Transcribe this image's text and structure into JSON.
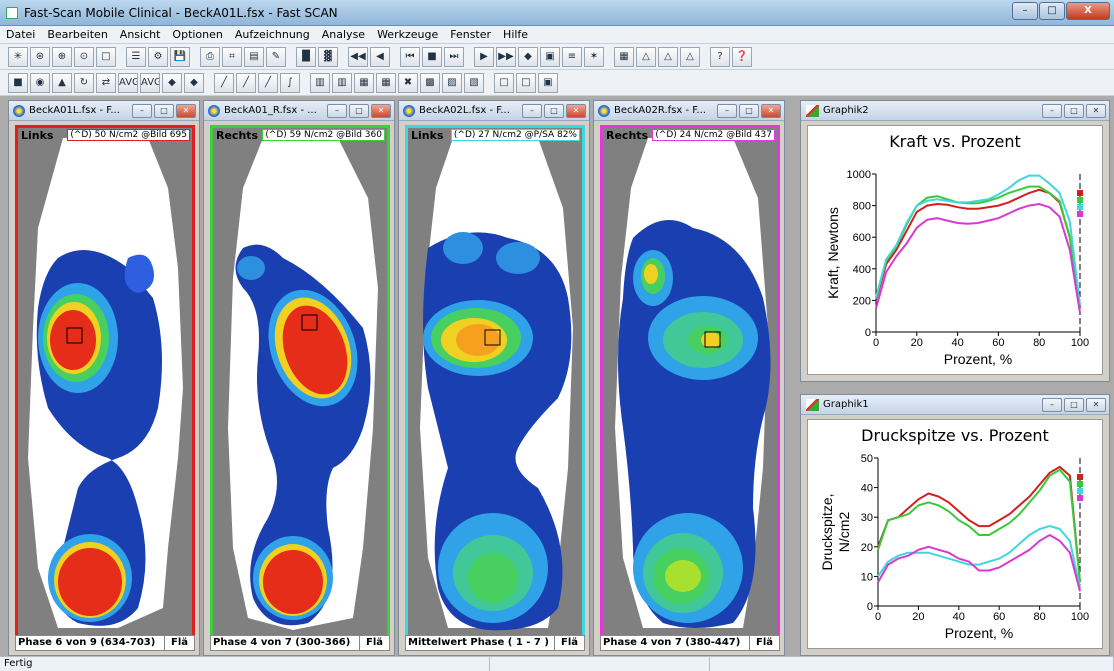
{
  "window": {
    "title": "Fast-Scan Mobile Clinical - BeckA01L.fsx - Fast  SCAN",
    "buttons": {
      "minimize": "–",
      "maximize": "□",
      "close": "X"
    }
  },
  "menu": [
    "Datei",
    "Bearbeiten",
    "Ansicht",
    "Optionen",
    "Aufzeichnung",
    "Analyse",
    "Werkzeuge",
    "Fenster",
    "Hilfe"
  ],
  "toolbar1": [
    "✳",
    "⊛",
    "⊕",
    "⊙",
    "□",
    "|",
    "☰",
    "⚙",
    "💾",
    "|",
    "⎙",
    "⌗",
    "▤",
    "✎",
    "|",
    "█",
    "▓",
    "|",
    "◀◀",
    "◀",
    "|",
    "⏮",
    "■",
    "⏭",
    "|",
    "▶",
    "▶▶",
    "◆",
    "▣",
    "≡",
    "✶",
    "|",
    "▦",
    "△",
    "△",
    "△",
    "|",
    "?",
    "❓"
  ],
  "toolbar2": [
    "■",
    "◉",
    "▲",
    "↻",
    "⇄",
    "AVG",
    "AVG",
    "◆",
    "◆",
    "|",
    "╱",
    "╱",
    "╱",
    "∫",
    "|",
    "▥",
    "▥",
    "▦",
    "▦",
    "✖",
    "▩",
    "▨",
    "▧",
    "|",
    "□",
    "□",
    "▣"
  ],
  "plates": [
    {
      "title": "BeckA01L.fsx - F...",
      "label": "Links",
      "info": "(^D) 50 N/cm2 @Bild 695",
      "phase": "Phase 6 von 9 (634-703)",
      "fla": "Flä",
      "color": "#e02020"
    },
    {
      "title": "BeckA01_R.fsx - ...",
      "label": "Rechts",
      "info": "(^D) 59 N/cm2 @Bild 360",
      "phase": "Phase 4 von 7 (300-366)",
      "fla": "Flä",
      "color": "#39d13a"
    },
    {
      "title": "BeckA02L.fsx - F...",
      "label": "Links",
      "info": "(^D) 27 N/cm2 @P/SA 82%",
      "phase": "Mittelwert Phase ( 1 - 7 )",
      "fla": "Flä",
      "color": "#3fd6dc"
    },
    {
      "title": "BeckA02R.fsx - F...",
      "label": "Rechts",
      "info": "(^D) 24 N/cm2 @Bild 437",
      "phase": "Phase 4 von 7 (380-447)",
      "fla": "Flä",
      "color": "#e03ad9"
    }
  ],
  "graphs": [
    {
      "window_title": "Graphik2",
      "title": "Kraft vs. Prozent",
      "ylabel": "Kraft, Newtons",
      "xlabel": "Prozent, %"
    },
    {
      "window_title": "Graphik1",
      "title": "Druckspitze vs. Prozent",
      "ylabel": "Druckspitze, N/cm2",
      "xlabel": "Prozent, %"
    }
  ],
  "chart_data": [
    {
      "type": "line",
      "title": "Kraft vs. Prozent",
      "xlabel": "Prozent, %",
      "ylabel": "Kraft, Newtons",
      "xlim": [
        0,
        100
      ],
      "ylim": [
        0,
        1000
      ],
      "xticks": [
        0,
        20,
        40,
        60,
        80,
        100
      ],
      "yticks": [
        0,
        200,
        400,
        600,
        800,
        1000
      ],
      "x": [
        0,
        5,
        10,
        15,
        20,
        25,
        30,
        35,
        40,
        45,
        50,
        55,
        60,
        65,
        70,
        75,
        80,
        85,
        90,
        95,
        100
      ],
      "series": [
        {
          "color": "#d02020",
          "values": [
            200,
            430,
            520,
            640,
            760,
            800,
            810,
            805,
            790,
            780,
            780,
            790,
            800,
            820,
            850,
            880,
            900,
            880,
            820,
            600,
            150
          ]
        },
        {
          "color": "#39c93a",
          "values": [
            210,
            450,
            540,
            680,
            800,
            850,
            860,
            840,
            820,
            815,
            815,
            830,
            850,
            880,
            900,
            920,
            920,
            880,
            830,
            600,
            160
          ]
        },
        {
          "color": "#3fd6dc",
          "values": [
            220,
            460,
            550,
            690,
            800,
            830,
            840,
            830,
            820,
            820,
            830,
            840,
            870,
            910,
            960,
            990,
            990,
            940,
            880,
            700,
            170
          ]
        },
        {
          "color": "#d83ad0",
          "values": [
            150,
            380,
            480,
            560,
            660,
            710,
            720,
            705,
            690,
            685,
            690,
            705,
            720,
            750,
            780,
            800,
            810,
            790,
            730,
            520,
            120
          ]
        }
      ],
      "grid": false
    },
    {
      "type": "line",
      "title": "Druckspitze vs. Prozent",
      "xlabel": "Prozent, %",
      "ylabel": "Druckspitze, N/cm2",
      "xlim": [
        0,
        100
      ],
      "ylim": [
        0,
        50
      ],
      "xticks": [
        0,
        20,
        40,
        60,
        80,
        100
      ],
      "yticks": [
        0,
        10,
        20,
        30,
        40,
        50
      ],
      "x": [
        0,
        5,
        10,
        15,
        20,
        25,
        30,
        35,
        40,
        45,
        50,
        55,
        60,
        65,
        70,
        75,
        80,
        85,
        90,
        95,
        100
      ],
      "series": [
        {
          "color": "#d02020",
          "values": [
            20,
            29,
            30,
            33,
            36,
            38,
            37,
            35,
            32,
            29,
            27,
            27,
            29,
            31,
            34,
            37,
            41,
            45,
            47,
            44,
            8
          ]
        },
        {
          "color": "#39c93a",
          "values": [
            19,
            29,
            30,
            31,
            34,
            35,
            34,
            32,
            29,
            27,
            24,
            24,
            26,
            28,
            31,
            35,
            39,
            44,
            46,
            42,
            8
          ]
        },
        {
          "color": "#3fd6dc",
          "values": [
            10,
            15,
            17,
            18,
            18,
            18,
            17,
            16,
            15,
            14,
            14,
            15,
            16,
            18,
            21,
            24,
            26,
            27,
            26,
            22,
            6
          ]
        },
        {
          "color": "#d83ad0",
          "values": [
            8,
            14,
            16,
            17,
            19,
            20,
            19,
            18,
            16,
            15,
            12,
            12,
            13,
            15,
            17,
            19,
            22,
            24,
            22,
            18,
            5
          ]
        }
      ],
      "grid": false
    }
  ],
  "status": {
    "text": "Fertig",
    "p2": "",
    "p3": ""
  }
}
